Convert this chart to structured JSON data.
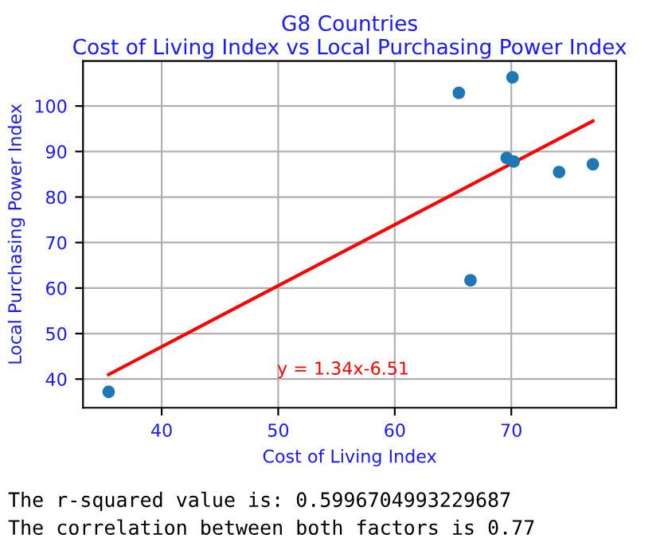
{
  "chart_data": {
    "type": "scatter",
    "title": "G8 Countries\nCost of Living Index vs Local Purchasing Power Index",
    "xlabel": "Cost of Living Index",
    "ylabel": "Local Purchasing Power Index",
    "series": [
      {
        "color": "#1f77b4",
        "x": [
          35.45,
          65.5,
          70.1,
          69.6,
          70.2,
          74.1,
          77.0,
          66.5
        ],
        "values": [
          37.2,
          102.9,
          106.3,
          88.6,
          87.8,
          85.5,
          87.2,
          61.7
        ]
      },
      {
        "type": "line",
        "color": "#ff0000",
        "x": [
          35.45,
          77.0
        ],
        "values": [
          41.0,
          96.7
        ]
      }
    ],
    "annotations": [
      "y = 1.34x-6.51",
      "The r-squared value is: 0.5996704993229687",
      "The correlation between both factors is 0.77"
    ],
    "xlim": [
      33.25,
      79.0
    ],
    "ylim": [
      33.7,
      109.9
    ],
    "xticks": [
      40,
      50,
      60,
      70
    ],
    "yticks": [
      40,
      50,
      60,
      70,
      80,
      90,
      100
    ],
    "grid": true
  }
}
